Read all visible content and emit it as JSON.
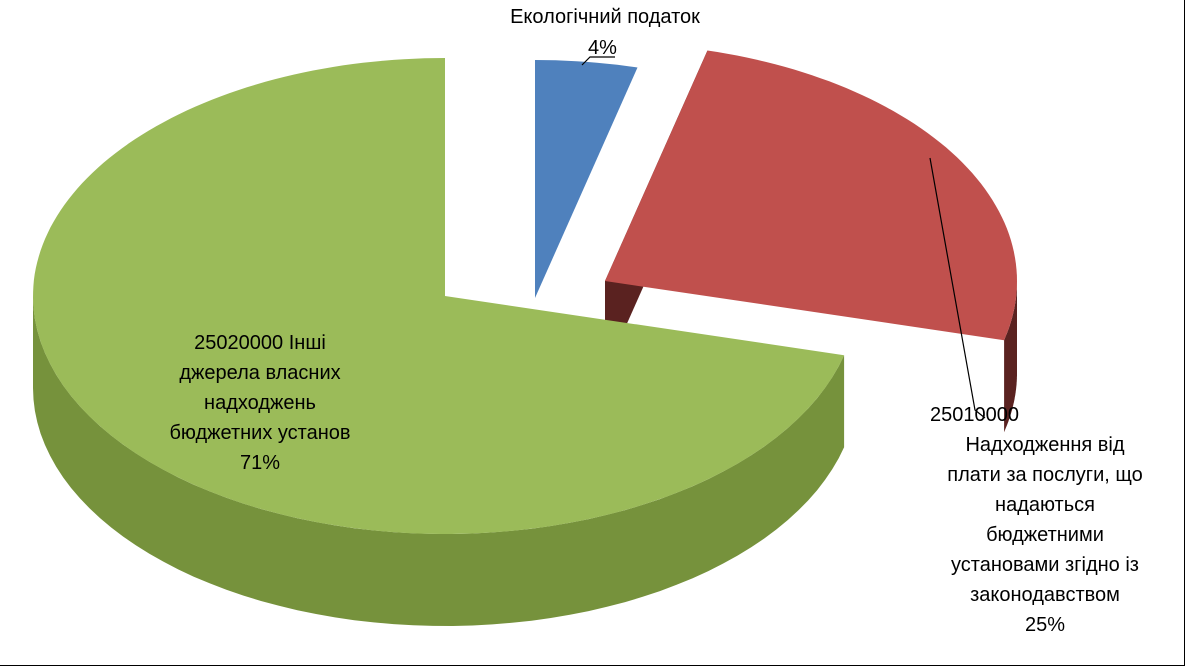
{
  "chart_data": {
    "type": "pie",
    "style": "3d-exploded",
    "slices": [
      {
        "label_lines": [
          "Екологічний податок"
        ],
        "value": 4,
        "value_label": "4%",
        "color": "#4F81BD",
        "side_color": "#385D8A"
      },
      {
        "label_lines": [
          "25010000",
          "Надходження від",
          "плати за послуги, що",
          "надаються",
          "бюджетними",
          "установами згідно із",
          "законодавством"
        ],
        "value": 25,
        "value_label": "25%",
        "color": "#C0504D",
        "side_color": "#5A2220"
      },
      {
        "label_lines": [
          "25020000 Інші",
          "джерела власних",
          "надходжень",
          "бюджетних установ"
        ],
        "value": 71,
        "value_label": "71%",
        "color": "#9BBB59",
        "side_color": "#76923C"
      }
    ]
  }
}
